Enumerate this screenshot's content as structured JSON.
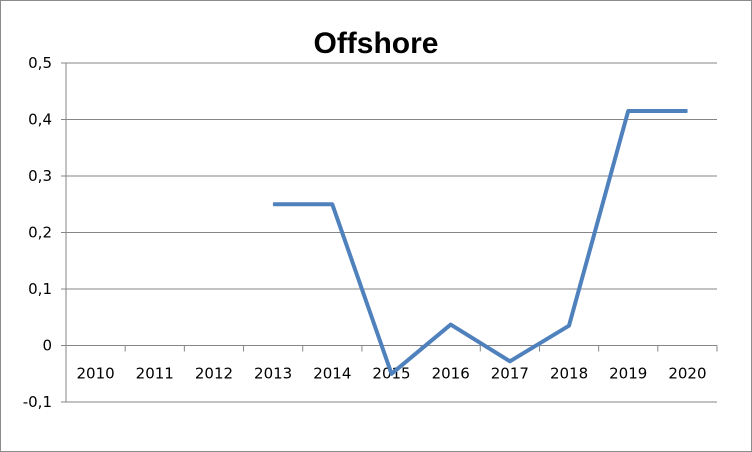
{
  "chart_data": {
    "type": "line",
    "title": "Offshore",
    "xlabel": "",
    "ylabel": "",
    "categories": [
      "2010",
      "2011",
      "2012",
      "2013",
      "2014",
      "2015",
      "2016",
      "2017",
      "2018",
      "2019",
      "2020"
    ],
    "y_tick_labels": [
      "0,5",
      "0,4",
      "0,3",
      "0,2",
      "0,1",
      "0",
      "-0,1"
    ],
    "ylim": [
      -0.1,
      0.5
    ],
    "grid": true,
    "legend": "none",
    "series": [
      {
        "color": "#4f81bd",
        "values": [
          null,
          null,
          null,
          0.25,
          0.25,
          -0.05,
          0.037,
          -0.028,
          0.035,
          0.415,
          0.415
        ]
      }
    ]
  }
}
